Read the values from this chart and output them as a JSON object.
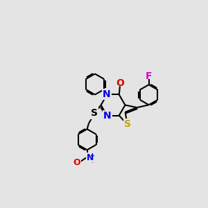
{
  "bg_color": "#e4e4e4",
  "lw": 1.5,
  "doff": 0.008,
  "fs": 10,
  "core": {
    "pcx": 0.54,
    "pcy": 0.5,
    "rs": 0.075
  },
  "colors": {
    "N": "#0000ee",
    "O": "#dd0000",
    "S_thio": "#bbaa00",
    "S_benz": "#000000",
    "F": "#dd00dd",
    "bond": "#000000"
  }
}
